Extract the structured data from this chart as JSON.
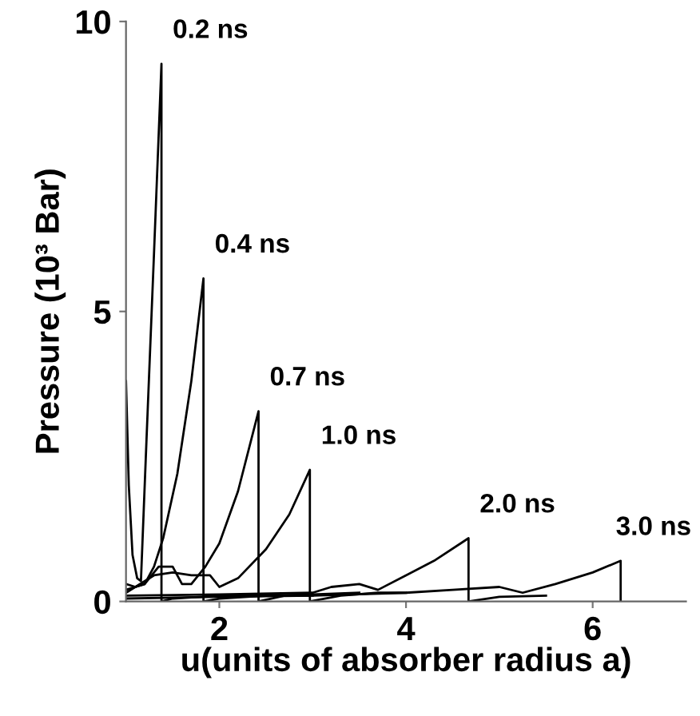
{
  "chart_data": {
    "type": "line",
    "xlabel": "u(units of absorber radius a)",
    "ylabel": "Pressure (10³ Bar)",
    "xlim": [
      1,
      7
    ],
    "ylim": [
      0,
      10
    ],
    "xticks": [
      2,
      4,
      6
    ],
    "yticks": [
      0,
      5,
      10
    ],
    "grid": false,
    "legend": false,
    "series": [
      {
        "name": "0.2 ns",
        "color": "#000000",
        "x": [
          1.0,
          1.03,
          1.07,
          1.12,
          1.16,
          1.22,
          1.3,
          1.38,
          1.38,
          1.5,
          2.0,
          2.5,
          3.0
        ],
        "values": [
          3.8,
          2.0,
          0.8,
          0.4,
          0.35,
          2.8,
          6.0,
          9.27,
          0,
          0.05,
          0.1,
          0.1,
          0.12
        ]
      },
      {
        "name": "0.4 ns",
        "color": "#000000",
        "x": [
          1.0,
          1.1,
          1.2,
          1.3,
          1.4,
          1.55,
          1.7,
          1.83,
          1.83,
          2.0,
          2.5,
          3.0
        ],
        "values": [
          0.3,
          0.25,
          0.3,
          0.6,
          1.1,
          2.2,
          3.8,
          5.57,
          0,
          0.05,
          0.1,
          0.1
        ]
      },
      {
        "name": "0.7 ns",
        "color": "#000000",
        "x": [
          1.0,
          1.2,
          1.35,
          1.5,
          1.6,
          1.7,
          1.85,
          2.0,
          2.2,
          2.42,
          2.42,
          2.7,
          3.0,
          3.5
        ],
        "values": [
          0.2,
          0.3,
          0.6,
          0.6,
          0.3,
          0.3,
          0.6,
          1.0,
          1.9,
          3.28,
          0,
          0.1,
          0.12,
          0.15
        ]
      },
      {
        "name": "1.0 ns",
        "color": "#000000",
        "x": [
          1.0,
          1.3,
          1.5,
          1.7,
          1.9,
          2.0,
          2.2,
          2.5,
          2.75,
          2.97,
          2.97,
          3.3,
          3.7,
          4.0
        ],
        "values": [
          0.15,
          0.45,
          0.5,
          0.45,
          0.45,
          0.25,
          0.4,
          0.9,
          1.5,
          2.27,
          0,
          0.1,
          0.15,
          0.15
        ]
      },
      {
        "name": "2.0 ns",
        "color": "#000000",
        "x": [
          1.0,
          2.0,
          3.0,
          3.2,
          3.5,
          3.7,
          4.0,
          4.3,
          4.67,
          4.67,
          5.0,
          5.5
        ],
        "values": [
          0.1,
          0.12,
          0.15,
          0.25,
          0.3,
          0.2,
          0.45,
          0.7,
          1.09,
          0,
          0.08,
          0.1
        ]
      },
      {
        "name": "3.0 ns",
        "color": "#000000",
        "x": [
          1.0,
          2.0,
          3.0,
          4.0,
          4.5,
          5.0,
          5.25,
          5.6,
          6.0,
          6.3,
          6.3
        ],
        "values": [
          0.05,
          0.08,
          0.1,
          0.15,
          0.2,
          0.25,
          0.15,
          0.3,
          0.5,
          0.7,
          0
        ]
      }
    ]
  }
}
